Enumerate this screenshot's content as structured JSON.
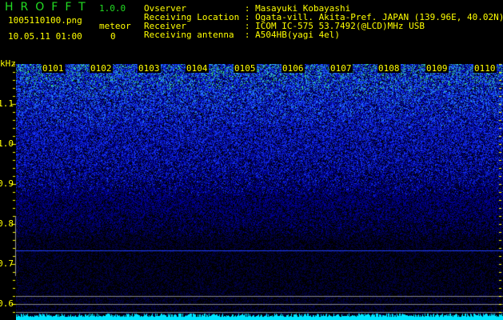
{
  "header": {
    "app_title": "HROFFT",
    "version": "1.0.0",
    "file_name": "1005110100.png",
    "datetime": "10.05.11 01:00",
    "meteor_label": "meteor",
    "meteor_count": "0"
  },
  "info": [
    {
      "label": "Ovserver           ",
      "value": "Masayuki Kobayashi"
    },
    {
      "label": "Receiving Location ",
      "value": "Ogata-vill. Akita-Pref. JAPAN (139.96E, 40.02N)"
    },
    {
      "label": "Receiver           ",
      "value": "ICOM IC-575 53.7492(@LCD)MHz USB"
    },
    {
      "label": "Receiving antenna  ",
      "value": "A504HB(yagi 4el)"
    }
  ],
  "spectrogram": {
    "y_unit": "kHz",
    "y_ticks": [
      "1.1",
      "1.0",
      "0.9",
      "0.8",
      "0.7",
      "0.6"
    ],
    "time_labels": [
      "0101",
      "0102",
      "0103",
      "0104",
      "0105",
      "0106",
      "0107",
      "0108",
      "0109",
      "0110"
    ],
    "colors": {
      "text": "#ffff00",
      "title": "#22dd22",
      "signal_low": "#0000aa",
      "signal_mid": "#2050ff",
      "signal_high": "#30ff80",
      "baseline": "#00e5ff",
      "marker_line": "#888888"
    }
  }
}
